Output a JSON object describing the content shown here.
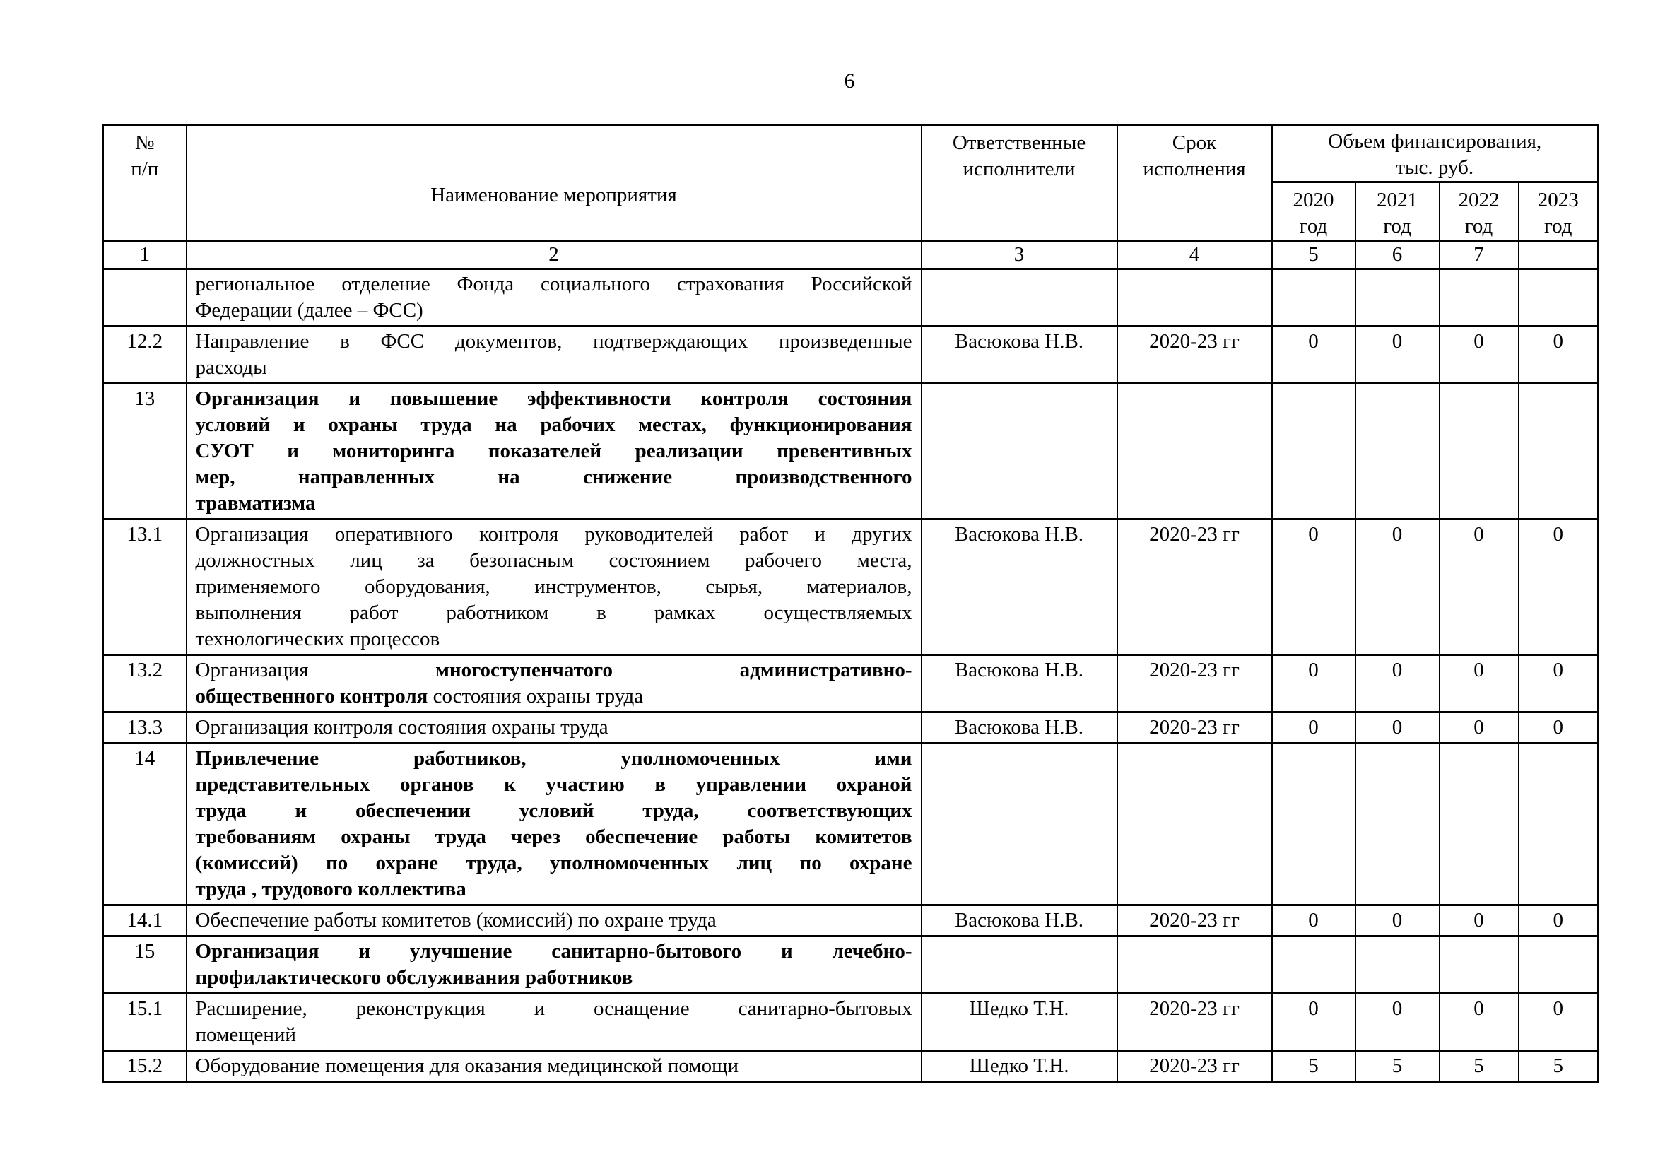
{
  "page": {
    "number": "6"
  },
  "table": {
    "header": {
      "num_col": [
        "№",
        "п/п"
      ],
      "name_col": "Наименование мероприятия",
      "exec_col": [
        "Ответственные",
        "исполнители"
      ],
      "term_col": [
        "Срок",
        "исполнения"
      ],
      "fin_col": [
        "Объем финансирования,",
        "тыс. руб."
      ],
      "years": [
        [
          "2020",
          "год"
        ],
        [
          "2021",
          "год"
        ],
        [
          "2022",
          "год"
        ],
        [
          "2023",
          "год"
        ]
      ],
      "index_row": [
        "1",
        "2",
        "3",
        "4",
        "5",
        "6",
        "7",
        ""
      ]
    },
    "rows": [
      {
        "num": "",
        "bold": false,
        "lines": [
          [
            {
              "t": "региональное отделение Фонда социального страхования Российской",
              "b": false
            }
          ],
          [
            {
              "t": "Федерации (далее – ФСС)",
              "b": false
            }
          ]
        ],
        "exec": "",
        "term": "",
        "values": [
          "",
          "",
          "",
          ""
        ]
      },
      {
        "num": "12.2",
        "bold": false,
        "lines": [
          [
            {
              "t": "Направление в ФСС документов, подтверждающих произведенные",
              "b": false
            }
          ],
          [
            {
              "t": "расходы",
              "b": false
            }
          ]
        ],
        "exec": "Васюкова Н.В.",
        "term": "2020-23 гг",
        "values": [
          "0",
          "0",
          "0",
          "0"
        ]
      },
      {
        "num": "13",
        "bold": true,
        "lines": [
          [
            {
              "t": "Организация и повышение эффективности контроля состояния",
              "b": true
            }
          ],
          [
            {
              "t": "условий и охраны труда на рабочих местах, функционирования",
              "b": true
            }
          ],
          [
            {
              "t": "СУОТ и мониторинга показателей реализации превентивных",
              "b": true
            }
          ],
          [
            {
              "t": "мер, направленных на снижение производственного",
              "b": true
            }
          ],
          [
            {
              "t": "травматизма",
              "b": true
            }
          ]
        ],
        "exec": "",
        "term": "",
        "values": [
          "",
          "",
          "",
          ""
        ]
      },
      {
        "num": "13.1",
        "bold": false,
        "lines": [
          [
            {
              "t": "Организация оперативного контроля руководителей работ и других",
              "b": false
            }
          ],
          [
            {
              "t": "должностных лиц за безопасным состоянием рабочего места,",
              "b": false
            }
          ],
          [
            {
              "t": "применяемого оборудования, инструментов, сырья, материалов,",
              "b": false
            }
          ],
          [
            {
              "t": "выполнения работ работником в рамках осуществляемых",
              "b": false
            }
          ],
          [
            {
              "t": "технологических процессов",
              "b": false
            }
          ]
        ],
        "exec": "Васюкова Н.В.",
        "term": "2020-23 гг",
        "values": [
          "0",
          "0",
          "0",
          "0"
        ]
      },
      {
        "num": "13.2",
        "bold": false,
        "lines": [
          [
            {
              "t": "Организация ",
              "b": false
            },
            {
              "t": "многоступенчатого административно-",
              "b": true
            }
          ],
          [
            {
              "t": "общественного контроля",
              "b": true
            },
            {
              "t": " состояния охраны труда",
              "b": false
            }
          ]
        ],
        "exec": "Васюкова Н.В.",
        "term": "2020-23 гг",
        "values": [
          "0",
          "0",
          "0",
          "0"
        ]
      },
      {
        "num": "13.3",
        "bold": false,
        "lines": [
          [
            {
              "t": "Организация контроля состояния охраны труда",
              "b": false
            }
          ]
        ],
        "exec": "Васюкова Н.В.",
        "term": "2020-23 гг",
        "values": [
          "0",
          "0",
          "0",
          "0"
        ]
      },
      {
        "num": "14",
        "bold": true,
        "lines": [
          [
            {
              "t": "Привлечение работников, уполномоченных ими",
              "b": true
            }
          ],
          [
            {
              "t": "представительных органов к участию в управлении охраной",
              "b": true
            }
          ],
          [
            {
              "t": "труда и обеспечении условий труда, соответствующих",
              "b": true
            }
          ],
          [
            {
              "t": "требованиям охраны труда через обеспечение работы комитетов",
              "b": true
            }
          ],
          [
            {
              "t": "(комиссий) по охране труда, уполномоченных лиц по охране",
              "b": true
            }
          ],
          [
            {
              "t": "труда , трудового коллектива",
              "b": true
            }
          ]
        ],
        "exec": "",
        "term": "",
        "values": [
          "",
          "",
          "",
          ""
        ]
      },
      {
        "num": "14.1",
        "bold": false,
        "lines": [
          [
            {
              "t": "Обеспечение работы комитетов (комиссий) по охране труда",
              "b": false
            }
          ]
        ],
        "exec": "Васюкова Н.В.",
        "term": "2020-23 гг",
        "values": [
          "0",
          "0",
          "0",
          "0"
        ]
      },
      {
        "num": "15",
        "bold": true,
        "lines": [
          [
            {
              "t": "Организация и улучшение санитарно-бытового и лечебно-",
              "b": true
            }
          ],
          [
            {
              "t": "профилактического обслуживания работников",
              "b": true
            }
          ]
        ],
        "exec": "",
        "term": "",
        "values": [
          "",
          "",
          "",
          ""
        ]
      },
      {
        "num": "15.1",
        "bold": false,
        "lines": [
          [
            {
              "t": "Расширение, реконструкция и оснащение санитарно-бытовых",
              "b": false
            }
          ],
          [
            {
              "t": "помещений",
              "b": false
            }
          ]
        ],
        "exec": "Шедко Т.Н.",
        "term": "2020-23 гг",
        "values": [
          "0",
          "0",
          "0",
          "0"
        ]
      },
      {
        "num": "15.2",
        "bold": false,
        "lines": [
          [
            {
              "t": "Оборудование помещения для оказания медицинской помощи",
              "b": false
            }
          ]
        ],
        "exec": "Шедко Т.Н.",
        "term": "2020-23 гг",
        "values": [
          "5",
          "5",
          "5",
          "5"
        ]
      }
    ]
  }
}
